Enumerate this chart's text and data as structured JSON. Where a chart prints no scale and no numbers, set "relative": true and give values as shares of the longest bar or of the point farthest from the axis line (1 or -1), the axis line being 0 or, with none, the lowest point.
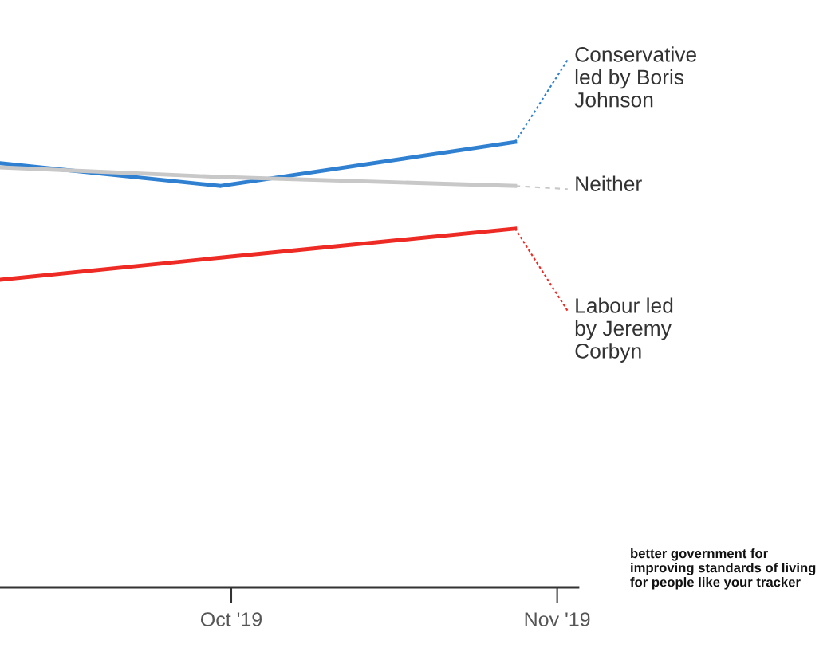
{
  "chart_data": {
    "type": "line",
    "relative": true,
    "xlim": [
      "2019-09-09",
      "2019-11-03"
    ],
    "xticks": [
      {
        "value": "2019-10-01",
        "label": "Oct '19"
      },
      {
        "value": "2019-11-01",
        "label": "Nov '19"
      }
    ],
    "annotations": [
      "better government for improving standards of living for people like your tracker"
    ],
    "series": [
      {
        "color": "#2f80d1",
        "x": [
          "2019-09-09",
          "2019-09-30",
          "2019-10-28"
        ],
        "values": [
          0.804,
          0.761,
          0.844
        ]
      },
      {
        "name": "Conservative\nled by Boris\nJohnson",
        "color": "#2f80d1",
        "line_style": "dotted",
        "x": [
          "2019-10-28",
          "2019-11-02"
        ],
        "values": [
          0.844,
          1.0
        ]
      },
      {
        "color": "#c8c8c8",
        "x": [
          "2019-09-09",
          "2019-09-30",
          "2019-10-28"
        ],
        "values": [
          0.796,
          0.778,
          0.761
        ]
      },
      {
        "name": "Neither",
        "color": "#c8c8c8",
        "line_style": "dashed",
        "x": [
          "2019-10-28",
          "2019-11-02"
        ],
        "values": [
          0.761,
          0.755
        ]
      },
      {
        "color": "#ee2a24",
        "x": [
          "2019-09-09",
          "2019-09-30",
          "2019-10-28"
        ],
        "values": [
          0.583,
          0.625,
          0.68
        ]
      },
      {
        "name": "Labour led\nby Jeremy\nCorbyn",
        "color": "#ee2a24",
        "line_style": "dotted",
        "x": [
          "2019-10-28",
          "2019-11-02"
        ],
        "values": [
          0.68,
          0.524
        ]
      }
    ]
  }
}
